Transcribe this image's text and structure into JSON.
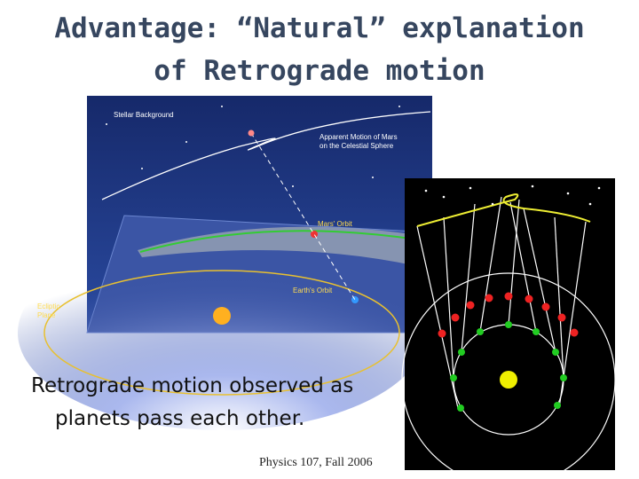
{
  "header": {
    "title_line1": "Advantage: “Natural” explanation",
    "title_line2": "of Retrograde motion"
  },
  "figure_left": {
    "labels": [
      "Stellar Background",
      "Apparent Motion of Mars",
      "on the Celestial Sphere",
      "Mars' Orbit",
      "Earth's Orbit",
      "Ecliptic",
      "Plane"
    ]
  },
  "body": {
    "line1": "Retrograde motion observed as",
    "line2": "planets pass each other."
  },
  "footer": {
    "text": "Physics 107, Fall 2006"
  }
}
